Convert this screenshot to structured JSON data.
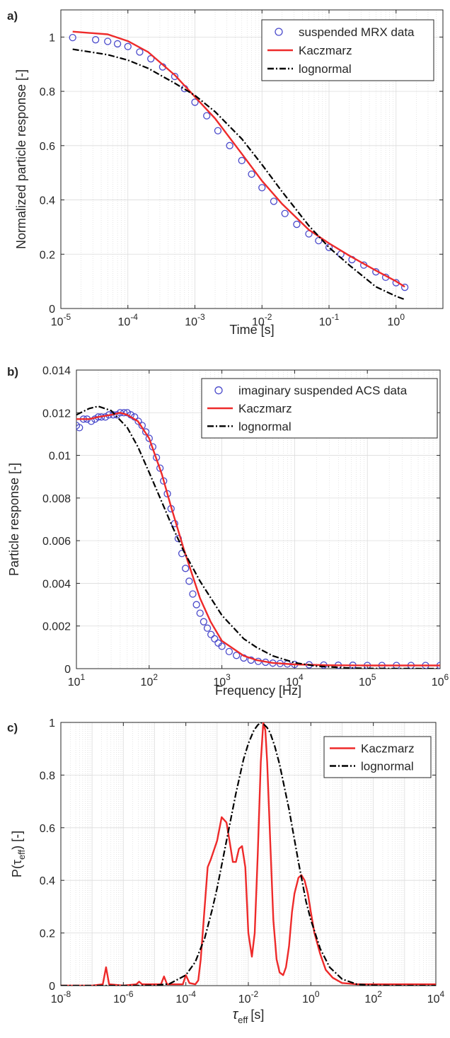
{
  "panels": [
    {
      "label": "a)"
    },
    {
      "label": "b)"
    },
    {
      "label": "c)"
    }
  ],
  "colors": {
    "data_marker": "#4a4acb",
    "kaczmarz": "#ee2a2a",
    "lognormal": "#000000"
  },
  "chart_data": [
    {
      "type": "line",
      "xlabel": "Time [s]",
      "ylabel": "Normalized particle response [-]",
      "xscale": "log",
      "xlim": [
        1e-05,
        5
      ],
      "ylim": [
        0,
        1.1
      ],
      "xticks": [
        {
          "value": 1e-05,
          "base": "10",
          "exp": "-5"
        },
        {
          "value": 0.0001,
          "base": "10",
          "exp": "-4"
        },
        {
          "value": 0.001,
          "base": "10",
          "exp": "-3"
        },
        {
          "value": 0.01,
          "base": "10",
          "exp": "-2"
        },
        {
          "value": 0.1,
          "base": "10",
          "exp": "-1"
        },
        {
          "value": 1,
          "base": "10",
          "exp": "0"
        }
      ],
      "yticks": [
        {
          "value": 0,
          "label": "0"
        },
        {
          "value": 0.2,
          "label": "0.2"
        },
        {
          "value": 0.4,
          "label": "0.4"
        },
        {
          "value": 0.6,
          "label": "0.6"
        },
        {
          "value": 0.8,
          "label": "0.8"
        },
        {
          "value": 1,
          "label": "1"
        }
      ],
      "grid": true,
      "legend_position": "top-right",
      "series": [
        {
          "name": "suspended MRX data",
          "style": "markers",
          "x": [
            1.5e-05,
            3.3e-05,
            5e-05,
            7e-05,
            0.0001,
            0.00015,
            0.00022,
            0.00033,
            0.0005,
            0.0007,
            0.001,
            0.0015,
            0.0022,
            0.0033,
            0.005,
            0.007,
            0.01,
            0.015,
            0.022,
            0.033,
            0.05,
            0.07,
            0.1,
            0.15,
            0.22,
            0.33,
            0.5,
            0.7,
            1.0,
            1.35
          ],
          "y": [
            0.998,
            0.99,
            0.984,
            0.975,
            0.965,
            0.945,
            0.92,
            0.89,
            0.855,
            0.81,
            0.76,
            0.71,
            0.655,
            0.6,
            0.545,
            0.495,
            0.445,
            0.395,
            0.35,
            0.31,
            0.275,
            0.25,
            0.225,
            0.2,
            0.18,
            0.16,
            0.135,
            0.115,
            0.095,
            0.078
          ]
        },
        {
          "name": "Kaczmarz",
          "style": "solid",
          "x": [
            1.5e-05,
            5e-05,
            0.0001,
            0.0002,
            0.0005,
            0.001,
            0.002,
            0.005,
            0.01,
            0.02,
            0.05,
            0.1,
            0.2,
            0.5,
            1.0,
            1.35
          ],
          "y": [
            1.02,
            1.01,
            0.985,
            0.945,
            0.86,
            0.78,
            0.7,
            0.57,
            0.47,
            0.385,
            0.29,
            0.24,
            0.195,
            0.14,
            0.1,
            0.08
          ]
        },
        {
          "name": "lognormal",
          "style": "dashdot",
          "x": [
            1.5e-05,
            5e-05,
            0.0001,
            0.0002,
            0.0005,
            0.001,
            0.002,
            0.005,
            0.01,
            0.02,
            0.05,
            0.1,
            0.2,
            0.5,
            1.0,
            1.35
          ],
          "y": [
            0.955,
            0.935,
            0.915,
            0.885,
            0.83,
            0.785,
            0.725,
            0.625,
            0.53,
            0.43,
            0.305,
            0.225,
            0.16,
            0.08,
            0.045,
            0.033
          ]
        }
      ]
    },
    {
      "type": "line",
      "xlabel": "Frequency [Hz]",
      "ylabel": "Particle response [-]",
      "xscale": "log",
      "xlim": [
        10,
        1000000.0
      ],
      "ylim": [
        0,
        0.014
      ],
      "xticks": [
        {
          "value": 10,
          "base": "10",
          "exp": "1"
        },
        {
          "value": 100,
          "base": "10",
          "exp": "2"
        },
        {
          "value": 1000,
          "base": "10",
          "exp": "3"
        },
        {
          "value": 10000,
          "base": "10",
          "exp": "4"
        },
        {
          "value": 100000,
          "base": "10",
          "exp": "5"
        },
        {
          "value": 1000000,
          "base": "10",
          "exp": "6"
        }
      ],
      "yticks": [
        {
          "value": 0,
          "label": "0"
        },
        {
          "value": 0.002,
          "label": "0.002"
        },
        {
          "value": 0.004,
          "label": "0.004"
        },
        {
          "value": 0.006,
          "label": "0.006"
        },
        {
          "value": 0.008,
          "label": "0.008"
        },
        {
          "value": 0.01,
          "label": "0.01"
        },
        {
          "value": 0.012,
          "label": "0.012"
        },
        {
          "value": 0.014,
          "label": "0.014"
        }
      ],
      "grid": true,
      "legend_position": "top-right",
      "series": [
        {
          "name": "imaginary suspended ACS data",
          "style": "markers",
          "x": [
            10,
            11,
            12.5,
            14,
            16,
            18,
            20,
            22,
            25,
            28,
            32,
            36,
            40,
            45,
            50,
            56,
            63,
            71,
            80,
            90,
            100,
            112,
            126,
            141,
            158,
            178,
            200,
            224,
            251,
            282,
            316,
            355,
            398,
            447,
            501,
            562,
            631,
            708,
            794,
            891,
            1000,
            1259,
            1585,
            1995,
            2512,
            3162,
            3981,
            5012,
            6310,
            7943,
            10000,
            15849,
            25119,
            39811,
            63096,
            100000,
            158489,
            251189,
            398107,
            630957,
            1000000
          ],
          "y": [
            0.0114,
            0.0113,
            0.0117,
            0.0117,
            0.0116,
            0.0117,
            0.0118,
            0.0118,
            0.0118,
            0.0119,
            0.0119,
            0.0119,
            0.012,
            0.012,
            0.012,
            0.0119,
            0.0118,
            0.0116,
            0.0114,
            0.0111,
            0.0108,
            0.0104,
            0.0099,
            0.0094,
            0.0088,
            0.0082,
            0.0075,
            0.0068,
            0.0061,
            0.0054,
            0.0047,
            0.0041,
            0.0035,
            0.003,
            0.0026,
            0.0022,
            0.0019,
            0.0016,
            0.0014,
            0.0012,
            0.00105,
            0.0008,
            0.00062,
            0.0005,
            0.0004,
            0.00034,
            0.0003,
            0.00026,
            0.00024,
            0.00022,
            0.0002,
            0.00018,
            0.00017,
            0.00016,
            0.00016,
            0.00015,
            0.00015,
            0.00015,
            0.00015,
            0.00015,
            0.00015
          ]
        },
        {
          "name": "Kaczmarz",
          "style": "solid",
          "x": [
            10,
            15,
            20,
            30,
            40,
            50,
            70,
            100,
            150,
            200,
            300,
            500,
            700,
            1000,
            2000,
            3000,
            5000,
            10000,
            30000,
            100000,
            1000000
          ],
          "y": [
            0.0117,
            0.0117,
            0.0118,
            0.0119,
            0.012,
            0.0119,
            0.0116,
            0.0108,
            0.0091,
            0.0076,
            0.0056,
            0.0033,
            0.0022,
            0.0013,
            0.0006,
            0.0004,
            0.00027,
            0.0002,
            0.00016,
            0.00015,
            0.00015
          ]
        },
        {
          "name": "lognormal",
          "style": "dashdot",
          "x": [
            10,
            15,
            20,
            30,
            50,
            70,
            100,
            150,
            200,
            300,
            500,
            1000,
            2000,
            3000,
            5000,
            10000,
            20000,
            50000,
            100000,
            1000000
          ],
          "y": [
            0.0119,
            0.0122,
            0.0123,
            0.0121,
            0.0113,
            0.0104,
            0.0092,
            0.0078,
            0.0068,
            0.0055,
            0.0041,
            0.0025,
            0.0014,
            0.001,
            0.0006,
            0.00028,
            0.00012,
            4e-05,
            1e-05,
            0.0
          ]
        }
      ]
    },
    {
      "type": "line",
      "xlabel": "[s]",
      "xlabel_symbol": "τ",
      "xlabel_sub": "eff",
      "ylabel_prefix": "P(τ",
      "ylabel_sub": "eff",
      "ylabel_suffix": ") [-]",
      "xscale": "log",
      "xlim": [
        1e-08,
        10000.0
      ],
      "ylim": [
        0,
        1
      ],
      "xticks": [
        {
          "value": 1e-08,
          "base": "10",
          "exp": "-8"
        },
        {
          "value": 1e-06,
          "base": "10",
          "exp": "-6"
        },
        {
          "value": 0.0001,
          "base": "10",
          "exp": "-4"
        },
        {
          "value": 0.01,
          "base": "10",
          "exp": "-2"
        },
        {
          "value": 1,
          "base": "10",
          "exp": "0"
        },
        {
          "value": 100,
          "base": "10",
          "exp": "2"
        },
        {
          "value": 10000,
          "base": "10",
          "exp": "4"
        }
      ],
      "yticks": [
        {
          "value": 0,
          "label": "0"
        },
        {
          "value": 0.2,
          "label": "0.2"
        },
        {
          "value": 0.4,
          "label": "0.4"
        },
        {
          "value": 0.6,
          "label": "0.6"
        },
        {
          "value": 0.8,
          "label": "0.8"
        },
        {
          "value": 1,
          "label": "1"
        }
      ],
      "grid": true,
      "legend_position": "top-right",
      "series": [
        {
          "name": "Kaczmarz",
          "style": "solid",
          "x": [
            1e-08,
            1e-07,
            2.2e-07,
            2.8e-07,
            3.5e-07,
            1e-06,
            2.6e-06,
            3.2e-06,
            4e-06,
            1.6e-05,
            2e-05,
            2.5e-05,
            8e-05,
            0.0001,
            0.00013,
            0.0002,
            0.00025,
            0.0003,
            0.0004,
            0.0005,
            0.00063,
            0.001,
            0.0014,
            0.002,
            0.0025,
            0.0032,
            0.004,
            0.005,
            0.0063,
            0.008,
            0.01,
            0.013,
            0.016,
            0.02,
            0.025,
            0.03,
            0.035,
            0.04,
            0.05,
            0.063,
            0.08,
            0.1,
            0.13,
            0.16,
            0.2,
            0.25,
            0.3,
            0.4,
            0.5,
            0.63,
            0.8,
            1,
            1.3,
            2,
            3,
            5,
            10,
            30,
            100,
            1000,
            10000
          ],
          "y": [
            0,
            0,
            0.005,
            0.07,
            0.005,
            0,
            0.005,
            0.015,
            0.005,
            0.005,
            0.035,
            0.005,
            0.005,
            0.04,
            0.01,
            0.005,
            0.02,
            0.1,
            0.3,
            0.45,
            0.48,
            0.55,
            0.64,
            0.62,
            0.55,
            0.47,
            0.47,
            0.52,
            0.53,
            0.45,
            0.2,
            0.11,
            0.2,
            0.5,
            0.85,
            1.0,
            0.97,
            0.85,
            0.55,
            0.25,
            0.1,
            0.05,
            0.04,
            0.07,
            0.15,
            0.28,
            0.35,
            0.41,
            0.42,
            0.4,
            0.35,
            0.28,
            0.2,
            0.12,
            0.06,
            0.03,
            0.01,
            0.005,
            0.005,
            0.005,
            0.005
          ]
        },
        {
          "name": "lognormal",
          "style": "dashdot",
          "x": [
            1e-08,
            1e-06,
            1e-05,
            3e-05,
            0.0001,
            0.0002,
            0.0004,
            0.0007,
            0.001,
            0.002,
            0.004,
            0.007,
            0.01,
            0.015,
            0.02,
            0.025,
            0.03,
            0.04,
            0.05,
            0.07,
            0.1,
            0.2,
            0.4,
            0.7,
            1,
            2,
            4,
            10,
            30,
            100,
            1000,
            10000
          ],
          "y": [
            0,
            0,
            0.001,
            0.007,
            0.04,
            0.09,
            0.18,
            0.29,
            0.37,
            0.55,
            0.73,
            0.86,
            0.92,
            0.97,
            0.99,
            1.0,
            0.995,
            0.98,
            0.96,
            0.91,
            0.84,
            0.67,
            0.47,
            0.32,
            0.25,
            0.14,
            0.07,
            0.025,
            0.005,
            0.001,
            0,
            0
          ]
        }
      ]
    }
  ]
}
